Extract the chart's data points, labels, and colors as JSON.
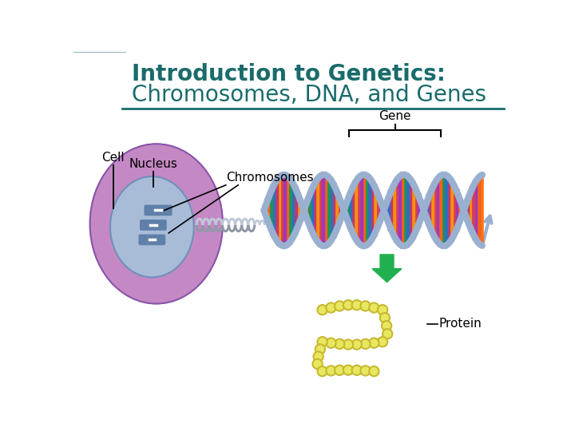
{
  "title_line1": "Introduction to Genetics:",
  "title_line2": "Chromosomes, DNA, and Genes",
  "title_color": "#1a6b6b",
  "bg_color": "#ffffff",
  "label_cell": "Cell",
  "label_nucleus": "Nucleus",
  "label_chromosomes": "Chromosomes",
  "label_gene": "Gene",
  "label_protein": "Protein",
  "cell_color": "#c488c4",
  "nucleus_color": "#a8bcd8",
  "chromosome_color": "#6080a8",
  "dna_backbone_color": "#9ab0d0",
  "protein_color": "#e8e860",
  "protein_edge_color": "#c8b830",
  "arrow_color": "#20b050",
  "separator_color": "#1a6b6b",
  "corner_color": "#1a6b6b",
  "font_size_title1": 20,
  "font_size_title2": 20,
  "font_size_labels": 11,
  "bar_colors": [
    "#cc3366",
    "#9933cc",
    "#ff6600",
    "#009966",
    "#3366cc",
    "#cc3366",
    "#ff9900"
  ]
}
